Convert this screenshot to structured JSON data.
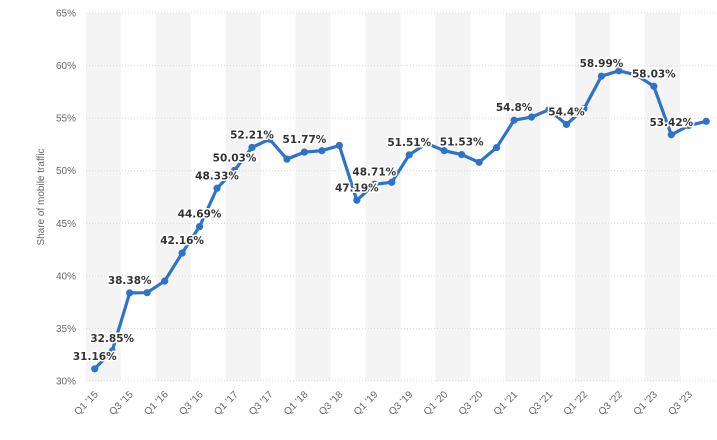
{
  "chart_data": {
    "type": "line",
    "ylabel": "Share of mobile traffic",
    "xlabel": "",
    "title": "",
    "ylim": [
      30,
      65
    ],
    "yticks": [
      30,
      35,
      40,
      45,
      50,
      55,
      60,
      65
    ],
    "ytick_labels": [
      "30%",
      "35%",
      "40%",
      "45%",
      "50%",
      "55%",
      "60%",
      "65%"
    ],
    "x_tick_labels": [
      "Q1 '15",
      "Q3 '15",
      "Q1 '16",
      "Q3 '16",
      "Q1 '17",
      "Q3 '17",
      "Q1 '18",
      "Q3 '18",
      "Q1 '19",
      "Q3 '19",
      "Q1 '20",
      "Q3 '20",
      "Q1 '21",
      "Q3 '21",
      "Q1 '22",
      "Q3 '22",
      "Q1 '23",
      "Q3 '23"
    ],
    "x": [
      "Q1 '15",
      "Q2 '15",
      "Q3 '15",
      "Q4 '15",
      "Q1 '16",
      "Q2 '16",
      "Q3 '16",
      "Q4 '16",
      "Q1 '17",
      "Q2 '17",
      "Q3 '17",
      "Q4 '17",
      "Q1 '18",
      "Q2 '18",
      "Q3 '18",
      "Q4 '18",
      "Q1 '19",
      "Q2 '19",
      "Q3 '19",
      "Q4 '19",
      "Q1 '20",
      "Q2 '20",
      "Q3 '20",
      "Q4 '20",
      "Q1 '21",
      "Q2 '21",
      "Q3 '21",
      "Q4 '21",
      "Q1 '22",
      "Q2 '22",
      "Q3 '22",
      "Q4 '22",
      "Q1 '23",
      "Q2 '23",
      "Q3 '23",
      "Q4 '23"
    ],
    "series": [
      {
        "values": [
          31.16,
          32.85,
          38.38,
          38.4,
          39.5,
          42.16,
          44.69,
          48.33,
          50.03,
          52.21,
          53.0,
          51.1,
          51.77,
          51.9,
          52.4,
          47.19,
          48.71,
          48.9,
          51.51,
          52.6,
          51.9,
          51.53,
          50.8,
          52.2,
          54.8,
          55.1,
          55.8,
          54.4,
          55.9,
          58.99,
          59.5,
          59.1,
          58.03,
          53.42,
          54.3,
          54.7
        ],
        "color": "#2d74c9"
      }
    ],
    "data_labels": [
      {
        "index": 0,
        "text": "31.16%"
      },
      {
        "index": 1,
        "text": "32.85%"
      },
      {
        "index": 2,
        "text": "38.38%"
      },
      {
        "index": 5,
        "text": "42.16%"
      },
      {
        "index": 6,
        "text": "44.69%"
      },
      {
        "index": 7,
        "text": "48.33%"
      },
      {
        "index": 8,
        "text": "50.03%"
      },
      {
        "index": 9,
        "text": "52.21%"
      },
      {
        "index": 12,
        "text": "51.77%"
      },
      {
        "index": 15,
        "text": "47.19%"
      },
      {
        "index": 16,
        "text": "48.71%"
      },
      {
        "index": 18,
        "text": "51.51%"
      },
      {
        "index": 21,
        "text": "51.53%"
      },
      {
        "index": 24,
        "text": "54.8%"
      },
      {
        "index": 27,
        "text": "54.4%"
      },
      {
        "index": 29,
        "text": "58.99%"
      },
      {
        "index": 32,
        "text": "58.03%"
      },
      {
        "index": 33,
        "text": "53.42%"
      }
    ],
    "grid": true,
    "legend": "none"
  }
}
